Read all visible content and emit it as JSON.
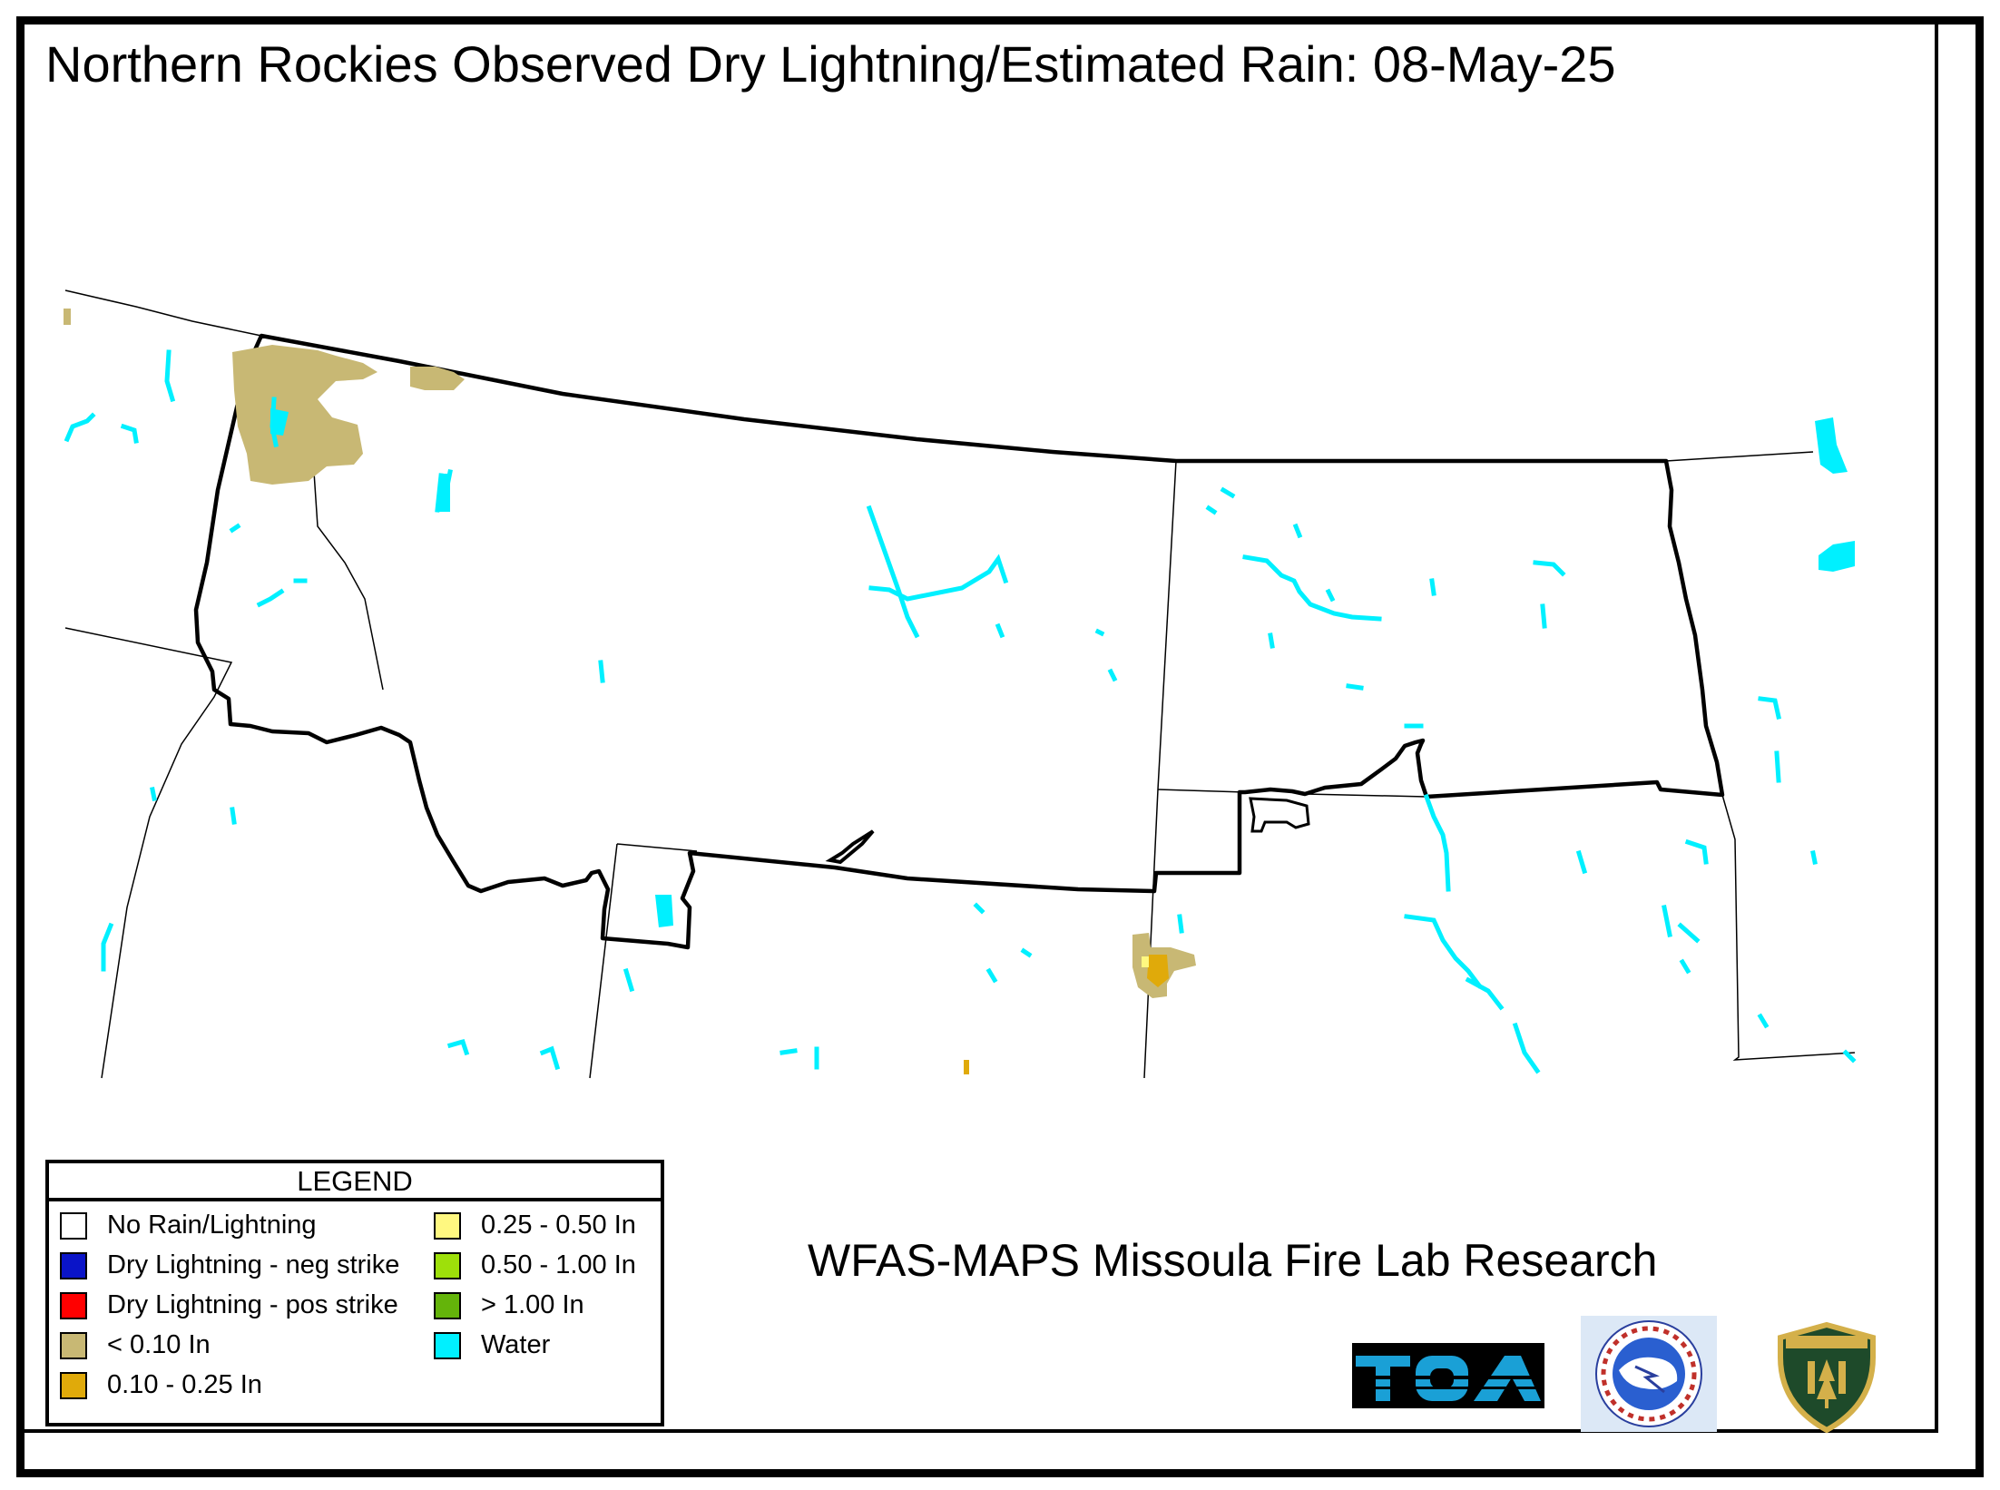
{
  "title": "Northern Rockies Observed Dry Lightning/Estimated Rain: 08-May-25",
  "credit": "WFAS-MAPS Missoula Fire Lab Research",
  "legend": {
    "title": "LEGEND",
    "items": [
      {
        "label": "No Rain/Lightning",
        "color": "#ffffff"
      },
      {
        "label": "Dry Lightning - neg strike",
        "color": "#0a14c8"
      },
      {
        "label": "Dry Lightning - pos strike",
        "color": "#ff0000"
      },
      {
        "label": "< 0.10 In",
        "color": "#c8b874"
      },
      {
        "label": "0.10 - 0.25 In",
        "color": "#e0aa0a"
      },
      {
        "label": "0.25 - 0.50 In",
        "color": "#fff880"
      },
      {
        "label": "0.50 - 1.00 In",
        "color": "#9ee00a"
      },
      {
        "label": "> 1.00 In",
        "color": "#64b40a"
      },
      {
        "label": "Water",
        "color": "#00f0ff"
      }
    ]
  },
  "logos": {
    "toa": "TOA",
    "nws_icon": "national-weather-service-logo",
    "usfs_icon": "us-forest-service-shield"
  },
  "colors": {
    "frame": "#000000",
    "water": "#00f0ff",
    "rain_light": "#c8b874",
    "rain_moderate": "#e0aa0a",
    "rain_heavy": "#fff880",
    "toa_blue": "#1aa0d6"
  }
}
